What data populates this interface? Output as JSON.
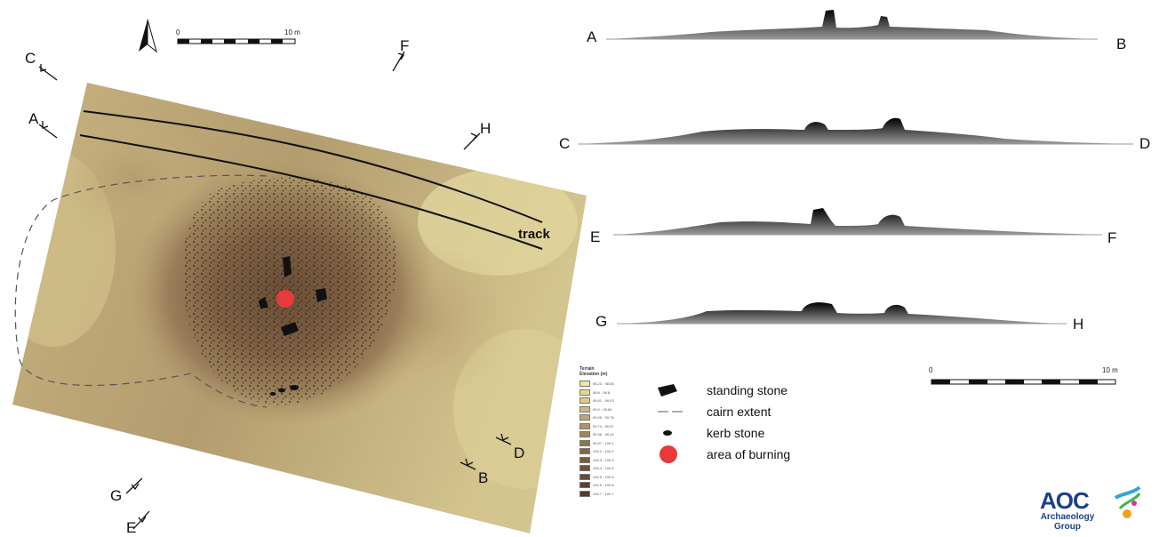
{
  "map": {
    "track_label": "track",
    "section_markers": [
      "A",
      "B",
      "C",
      "D",
      "E",
      "F",
      "G",
      "H"
    ]
  },
  "map_scale": {
    "start": "0",
    "end": "10 m"
  },
  "profiles": [
    {
      "start": "A",
      "end": "B"
    },
    {
      "start": "C",
      "end": "D"
    },
    {
      "start": "E",
      "end": "F"
    },
    {
      "start": "G",
      "end": "H"
    }
  ],
  "profile_scale": {
    "start": "0",
    "end": "10 m"
  },
  "elevation_legend": {
    "title_line1": "Terrain",
    "title_line2": "Elevation (m)",
    "classes": [
      {
        "label": "98.23 - 98.58",
        "color": "#eee7a8"
      },
      {
        "label": "98.6 - 98.8",
        "color": "#e3d898"
      },
      {
        "label": "98.81 - 99.03",
        "color": "#d8cb8c"
      },
      {
        "label": "99.0 - 99.84",
        "color": "#cbbb80"
      },
      {
        "label": "99.05 - 99.78",
        "color": "#bda872"
      },
      {
        "label": "99.74 - 99.97",
        "color": "#ad9564"
      },
      {
        "label": "99.98 - 99.26",
        "color": "#9e8458"
      },
      {
        "label": "99.97 - 100.1",
        "color": "#8f744e"
      },
      {
        "label": "100.2 - 100.2",
        "color": "#826746"
      },
      {
        "label": "100.3 - 100.3",
        "color": "#765b3f"
      },
      {
        "label": "100.4 - 100.4",
        "color": "#6c5239"
      },
      {
        "label": "100.5 - 100.5",
        "color": "#634a34"
      },
      {
        "label": "100.6 - 100.6",
        "color": "#5a422f"
      },
      {
        "label": "100.7 - 100.7",
        "color": "#523b2a"
      }
    ]
  },
  "legend": {
    "standing_stone": "standing stone",
    "cairn_extent": "cairn extent",
    "kerb_stone": "kerb stone",
    "area_of_burning": "area of burning"
  },
  "logo": {
    "name": "AOC",
    "line1": "Archaeology",
    "line2": "Group"
  },
  "colors": {
    "burning": "#e83a3a",
    "terrain_light": "#d8cb8c",
    "terrain_dark": "#6f5238",
    "logo_blue": "#1d3f8a"
  }
}
